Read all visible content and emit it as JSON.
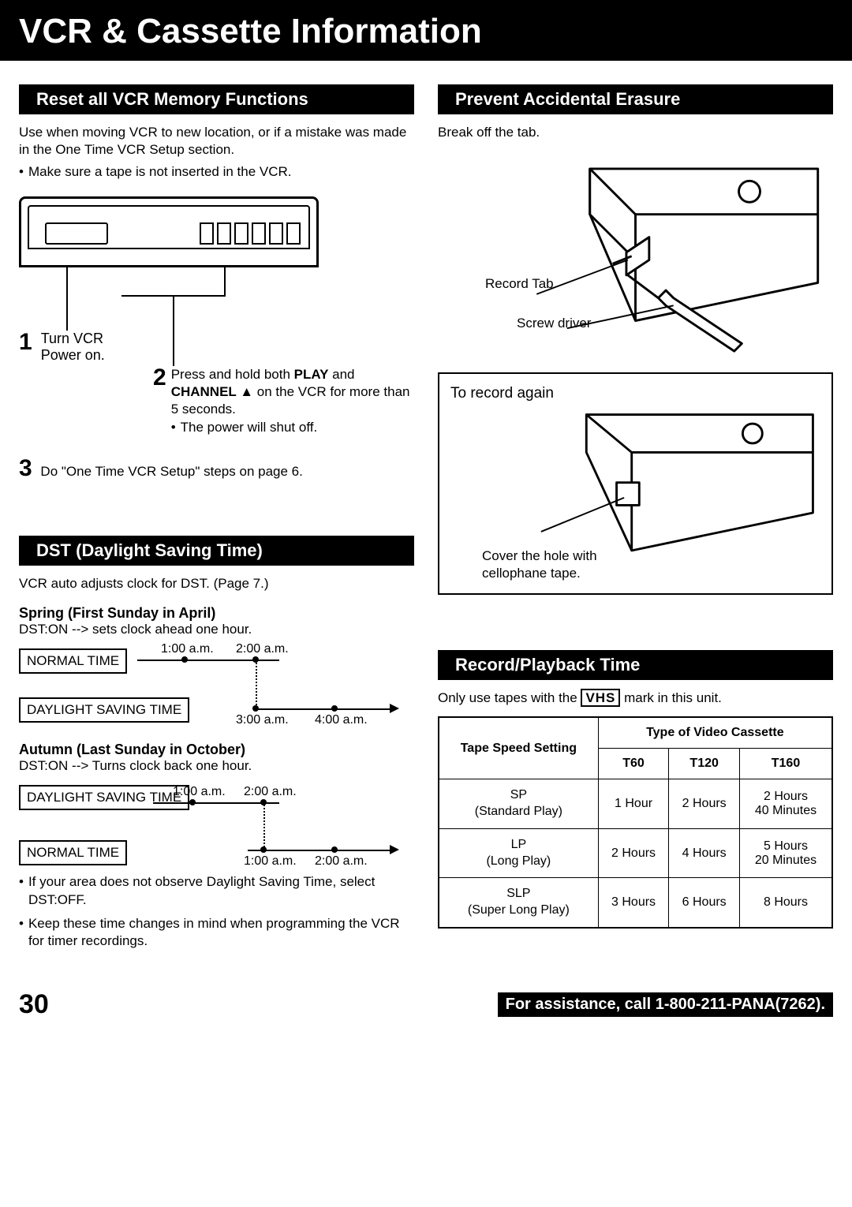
{
  "page_title": "VCR & Cassette Information",
  "page_number": "30",
  "footer_assistance": "For assistance, call 1-800-211-PANA(7262).",
  "reset": {
    "header": "Reset all VCR Memory Functions",
    "intro": "Use when moving VCR to new location, or if a mistake was made in the One Time VCR Setup section.",
    "note": "Make sure a tape is not inserted in the VCR.",
    "step1_num": "1",
    "step1": "Turn VCR Power on.",
    "step2_num": "2",
    "step2_a": "Press and hold both ",
    "step2_play": "PLAY",
    "step2_b": " and ",
    "step2_channel": "CHANNEL ▲",
    "step2_c": " on the VCR for more than 5 seconds.",
    "step2_bullet": "The power will shut off.",
    "step3_num": "3",
    "step3": "Do \"One Time VCR Setup\" steps on page 6."
  },
  "prevent": {
    "header": "Prevent Accidental Erasure",
    "intro": "Break off the tab.",
    "label_record_tab": "Record Tab",
    "label_screwdriver": "Screw driver",
    "record_again": "To record again",
    "cover_hole": "Cover the hole with cellophane tape."
  },
  "dst": {
    "header": "DST (Daylight Saving Time)",
    "intro": "VCR auto adjusts clock for DST. (Page 7.)",
    "spring_title": "Spring (First Sunday in April)",
    "spring_desc": "DST:ON --> sets clock ahead one hour.",
    "autumn_title": "Autumn (Last Sunday in October)",
    "autumn_desc": "DST:ON --> Turns clock back one hour.",
    "normal_time": "NORMAL TIME",
    "daylight_saving": "DAYLIGHT SAVING TIME",
    "t100": "1:00 a.m.",
    "t200": "2:00 a.m.",
    "t300": "3:00 a.m.",
    "t400": "4:00 a.m.",
    "bullet1": "If your area does not observe Daylight Saving Time, select DST:OFF.",
    "bullet2": "Keep these time changes in mind when programming the VCR for timer recordings."
  },
  "record": {
    "header": "Record/Playback Time",
    "intro_a": "Only use tapes with the ",
    "intro_vhs": "VHS",
    "intro_b": " mark in this unit.",
    "table": {
      "col_speed": "Tape Speed Setting",
      "col_type": "Type of Video Cassette",
      "col_t60": "T60",
      "col_t120": "T120",
      "col_t160": "T160",
      "rows": [
        {
          "label_a": "SP",
          "label_b": "(Standard Play)",
          "t60": "1 Hour",
          "t120": "2 Hours",
          "t160": "2 Hours 40 Minutes"
        },
        {
          "label_a": "LP",
          "label_b": "(Long Play)",
          "t60": "2 Hours",
          "t120": "4 Hours",
          "t160": "5 Hours 20 Minutes"
        },
        {
          "label_a": "SLP",
          "label_b": "(Super Long Play)",
          "t60": "3 Hours",
          "t120": "6 Hours",
          "t160": "8 Hours"
        }
      ]
    }
  }
}
